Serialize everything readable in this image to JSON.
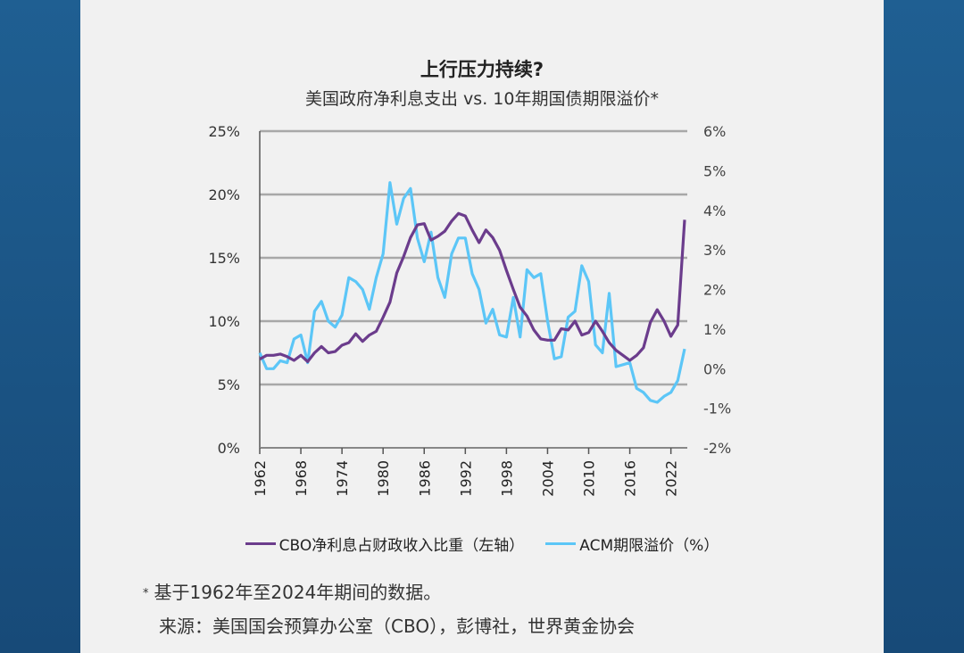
{
  "colors": {
    "cbo": "#6b3c8c",
    "acm": "#5cc6f7",
    "grid": "#a8a8a8"
  },
  "chart_data": {
    "type": "line",
    "title": "上行压力持续?",
    "subtitle": "美国政府净利息支出 vs. 10年期国债期限溢价*",
    "x": [
      1962,
      1963,
      1964,
      1965,
      1966,
      1967,
      1968,
      1969,
      1970,
      1971,
      1972,
      1973,
      1974,
      1975,
      1976,
      1977,
      1978,
      1979,
      1980,
      1981,
      1982,
      1983,
      1984,
      1985,
      1986,
      1987,
      1988,
      1989,
      1990,
      1991,
      1992,
      1993,
      1994,
      1995,
      1996,
      1997,
      1998,
      1999,
      2000,
      2001,
      2002,
      2003,
      2004,
      2005,
      2006,
      2007,
      2008,
      2009,
      2010,
      2011,
      2012,
      2013,
      2014,
      2015,
      2016,
      2017,
      2018,
      2019,
      2020,
      2021,
      2022,
      2023,
      2024
    ],
    "x_ticks": [
      "1962",
      "1968",
      "1974",
      "1980",
      "1986",
      "1992",
      "1998",
      "2004",
      "2010",
      "2016",
      "2022"
    ],
    "y_left": {
      "ylim": [
        0,
        25
      ],
      "ticks": [
        "0%",
        "5%",
        "10%",
        "15%",
        "20%",
        "25%"
      ]
    },
    "y_right": {
      "ylim": [
        -2,
        6
      ],
      "ticks": [
        "-2%",
        "-1%",
        "0%",
        "1%",
        "2%",
        "3%",
        "4%",
        "5%",
        "6%"
      ]
    },
    "grid": true,
    "legend_position": "bottom",
    "series": [
      {
        "name": "CBO净利息占财政收入比重（左轴）",
        "axis": "left",
        "values": [
          7.0,
          7.3,
          7.3,
          7.4,
          7.2,
          6.9,
          7.3,
          6.8,
          7.5,
          8.0,
          7.5,
          7.6,
          8.1,
          8.3,
          9.0,
          8.4,
          8.9,
          9.2,
          10.3,
          11.5,
          13.8,
          15.1,
          16.6,
          17.6,
          17.7,
          16.4,
          16.7,
          17.1,
          17.9,
          18.5,
          18.3,
          17.2,
          16.2,
          17.2,
          16.6,
          15.6,
          14.0,
          12.5,
          11.1,
          10.4,
          9.3,
          8.6,
          8.5,
          8.5,
          9.4,
          9.3,
          10.0,
          8.9,
          9.1,
          10.0,
          9.2,
          8.3,
          7.7,
          7.3,
          6.9,
          7.3,
          7.9,
          9.9,
          10.9,
          10.0,
          8.8,
          9.7,
          18.0
        ]
      },
      {
        "name": "ACM期限溢价（%）",
        "axis": "right",
        "values": [
          0.4,
          0.0,
          0.0,
          0.2,
          0.15,
          0.75,
          0.85,
          0.15,
          1.45,
          1.7,
          1.2,
          1.05,
          1.35,
          2.3,
          2.2,
          2.0,
          1.5,
          2.3,
          2.9,
          4.7,
          3.65,
          4.3,
          4.55,
          3.3,
          2.7,
          3.45,
          2.3,
          1.8,
          2.9,
          3.3,
          3.3,
          2.4,
          2.0,
          1.15,
          1.5,
          0.85,
          0.8,
          1.8,
          0.8,
          2.5,
          2.3,
          2.4,
          1.2,
          0.25,
          0.3,
          1.3,
          1.45,
          2.6,
          2.2,
          0.6,
          0.4,
          1.9,
          0.05,
          0.1,
          0.15,
          -0.5,
          -0.6,
          -0.8,
          -0.85,
          -0.7,
          -0.6,
          -0.3,
          0.5
        ]
      }
    ]
  },
  "legend": {
    "cbo": "CBO净利息占财政收入比重（左轴）",
    "acm": "ACM期限溢价（%）"
  },
  "notes": {
    "asterisk": "*",
    "footnote": "基于1962年至2024年期间的数据。",
    "source": "来源：美国国会预算办公室（CBO），彭博社，世界黄金协会"
  }
}
